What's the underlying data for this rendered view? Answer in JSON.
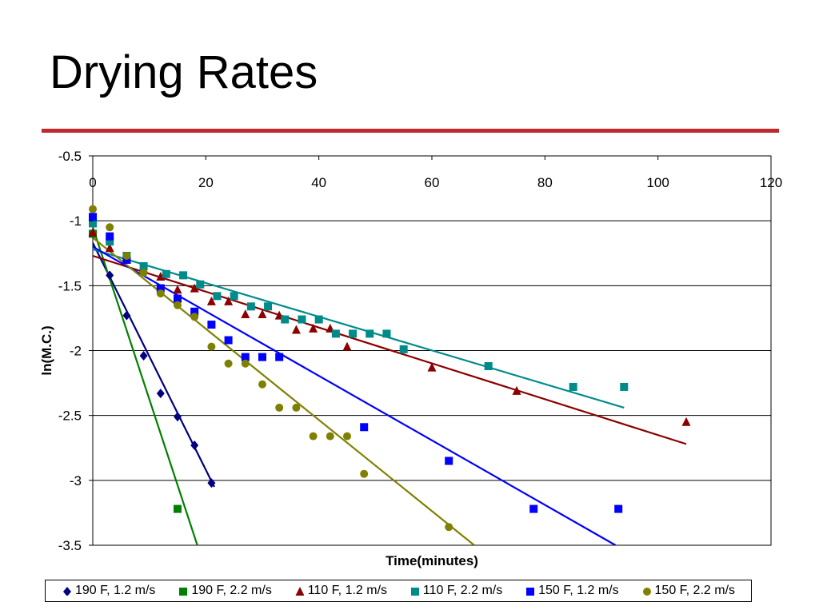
{
  "slide": {
    "title": "Drying Rates",
    "rule_color": "#C0292B"
  },
  "chart_data": {
    "type": "scatter",
    "xlabel": "Time(minutes)",
    "ylabel": "ln(M.C.)",
    "xlim": [
      0,
      120
    ],
    "ylim": [
      -3.5,
      -0.5
    ],
    "x_ticks": [
      0,
      20,
      40,
      60,
      80,
      100,
      120
    ],
    "y_ticks": [
      -0.5,
      -1,
      -1.5,
      -2,
      -2.5,
      -3,
      -3.5
    ],
    "x_tick_labels": [
      "0",
      "20",
      "40",
      "60",
      "80",
      "100",
      "120"
    ],
    "y_tick_labels": [
      "-0.5",
      "-1",
      "-1.5",
      "-2",
      "-2.5",
      "-3",
      "-3.5"
    ],
    "grid": "horizontal",
    "legend_position": "bottom",
    "series": [
      {
        "name": "190 F, 1.2 m/s",
        "marker": "diamond",
        "color": "#000080",
        "points": [
          [
            0,
            -1.1
          ],
          [
            3,
            -1.42
          ],
          [
            6,
            -1.73
          ],
          [
            9,
            -2.04
          ],
          [
            12,
            -2.33
          ],
          [
            15,
            -2.51
          ],
          [
            18,
            -2.73
          ],
          [
            21,
            -3.02
          ]
        ],
        "trendline": [
          [
            0,
            -1.17
          ],
          [
            21.5,
            -3.05
          ]
        ]
      },
      {
        "name": "190 F, 2.2 m/s",
        "marker": "square",
        "color": "#008000",
        "points": [
          [
            0,
            -1.1
          ],
          [
            15,
            -3.22
          ]
        ],
        "trendline": [
          [
            0,
            -1.05
          ],
          [
            18.5,
            -3.5
          ]
        ]
      },
      {
        "name": "110 F, 1.2 m/s",
        "marker": "triangle",
        "color": "#8B0000",
        "points": [
          [
            0,
            -1.09
          ],
          [
            3,
            -1.21
          ],
          [
            6,
            -1.3
          ],
          [
            9,
            -1.37
          ],
          [
            12,
            -1.43
          ],
          [
            15,
            -1.53
          ],
          [
            18,
            -1.52
          ],
          [
            21,
            -1.62
          ],
          [
            24,
            -1.62
          ],
          [
            27,
            -1.72
          ],
          [
            30,
            -1.72
          ],
          [
            33,
            -1.73
          ],
          [
            36,
            -1.84
          ],
          [
            39,
            -1.83
          ],
          [
            42,
            -1.83
          ],
          [
            45,
            -1.97
          ],
          [
            60,
            -2.13
          ],
          [
            75,
            -2.31
          ],
          [
            105,
            -2.55
          ]
        ],
        "trendline": [
          [
            0,
            -1.27
          ],
          [
            105,
            -2.72
          ]
        ]
      },
      {
        "name": "110 F, 2.2 m/s",
        "marker": "square",
        "color": "#008B8B",
        "points": [
          [
            0,
            -1.02
          ],
          [
            3,
            -1.16
          ],
          [
            6,
            -1.27
          ],
          [
            9,
            -1.35
          ],
          [
            13,
            -1.41
          ],
          [
            16,
            -1.42
          ],
          [
            19,
            -1.49
          ],
          [
            22,
            -1.58
          ],
          [
            25,
            -1.58
          ],
          [
            28,
            -1.66
          ],
          [
            31,
            -1.66
          ],
          [
            34,
            -1.76
          ],
          [
            37,
            -1.76
          ],
          [
            40,
            -1.76
          ],
          [
            43,
            -1.87
          ],
          [
            46,
            -1.87
          ],
          [
            49,
            -1.87
          ],
          [
            52,
            -1.87
          ],
          [
            55,
            -1.99
          ],
          [
            70,
            -2.12
          ],
          [
            85,
            -2.28
          ],
          [
            94,
            -2.28
          ]
        ],
        "trendline": [
          [
            0,
            -1.22
          ],
          [
            94,
            -2.44
          ]
        ]
      },
      {
        "name": "150 F, 1.2 m/s",
        "marker": "square",
        "color": "#0000FF",
        "points": [
          [
            0,
            -0.97
          ],
          [
            3,
            -1.12
          ],
          [
            6,
            -1.3
          ],
          [
            12,
            -1.52
          ],
          [
            15,
            -1.6
          ],
          [
            18,
            -1.7
          ],
          [
            21,
            -1.8
          ],
          [
            24,
            -1.92
          ],
          [
            27,
            -2.05
          ],
          [
            30,
            -2.05
          ],
          [
            33,
            -2.05
          ],
          [
            48,
            -2.59
          ],
          [
            63,
            -2.85
          ],
          [
            78,
            -3.22
          ],
          [
            93,
            -3.22
          ]
        ],
        "trendline": [
          [
            0,
            -1.2
          ],
          [
            92.5,
            -3.5
          ]
        ]
      },
      {
        "name": "150 F, 2.2 m/s",
        "marker": "circle",
        "color": "#808000",
        "points": [
          [
            0,
            -0.91
          ],
          [
            3,
            -1.05
          ],
          [
            6,
            -1.27
          ],
          [
            9,
            -1.4
          ],
          [
            12,
            -1.56
          ],
          [
            15,
            -1.65
          ],
          [
            18,
            -1.74
          ],
          [
            21,
            -1.97
          ],
          [
            24,
            -2.1
          ],
          [
            27,
            -2.1
          ],
          [
            30,
            -2.26
          ],
          [
            33,
            -2.44
          ],
          [
            36,
            -2.44
          ],
          [
            39,
            -2.66
          ],
          [
            42,
            -2.66
          ],
          [
            45,
            -2.66
          ],
          [
            48,
            -2.95
          ],
          [
            63,
            -3.36
          ]
        ],
        "trendline": [
          [
            0,
            -1.13
          ],
          [
            67.5,
            -3.5
          ]
        ]
      }
    ]
  }
}
